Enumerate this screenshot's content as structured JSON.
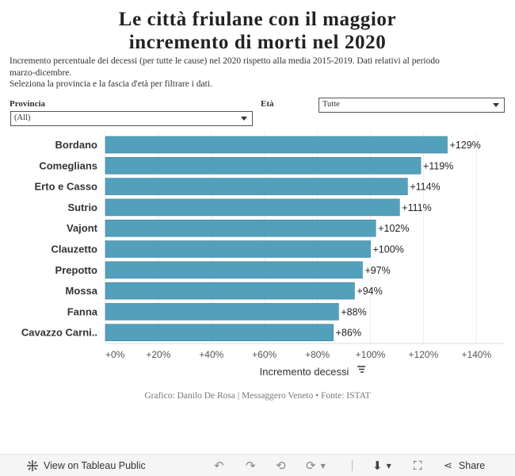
{
  "title_lines": [
    "Le città friulane con il maggior",
    "incremento di morti nel 2020"
  ],
  "subtitle_lines": [
    "Incremento percentuale dei decessi (per tutte le cause) nel 2020 rispetto alla media 2015-2019. Dati relativi al periodo",
    "marzo-dicembre.",
    "Seleziona la provincia e la fascia d'età per filtrare i dati."
  ],
  "filters": {
    "provincia": {
      "label": "Provincia",
      "value": "(All)"
    },
    "eta": {
      "label": "Età",
      "value": "Tutte"
    }
  },
  "chart_data": {
    "type": "bar",
    "orientation": "horizontal",
    "categories": [
      "Bordano",
      "Comeglians",
      "Erto e Casso",
      "Sutrio",
      "Vajont",
      "Clauzetto",
      "Prepotto",
      "Mossa",
      "Fanna",
      "Cavazzo Carni.."
    ],
    "values": [
      129,
      119,
      114,
      111,
      102,
      100,
      97,
      94,
      88,
      86
    ],
    "value_labels": [
      "+129%",
      "+119%",
      "+114%",
      "+111%",
      "+102%",
      "+100%",
      "+97%",
      "+94%",
      "+88%",
      "+86%"
    ],
    "xticks": [
      0,
      20,
      40,
      60,
      80,
      100,
      120,
      140
    ],
    "xtick_labels": [
      "+0%",
      "+20%",
      "+40%",
      "+60%",
      "+80%",
      "+100%",
      "+120%",
      "+140%"
    ],
    "xlim": [
      0,
      150
    ],
    "xlabel": "Incremento decessi",
    "bar_color": "#53a0bd",
    "grid": true
  },
  "credit": "Grafico: Danilo De Rosa | Messaggero Veneto • Fonte: ISTAT",
  "toolbar": {
    "view_label": "View on Tableau Public",
    "share_label": "Share"
  }
}
